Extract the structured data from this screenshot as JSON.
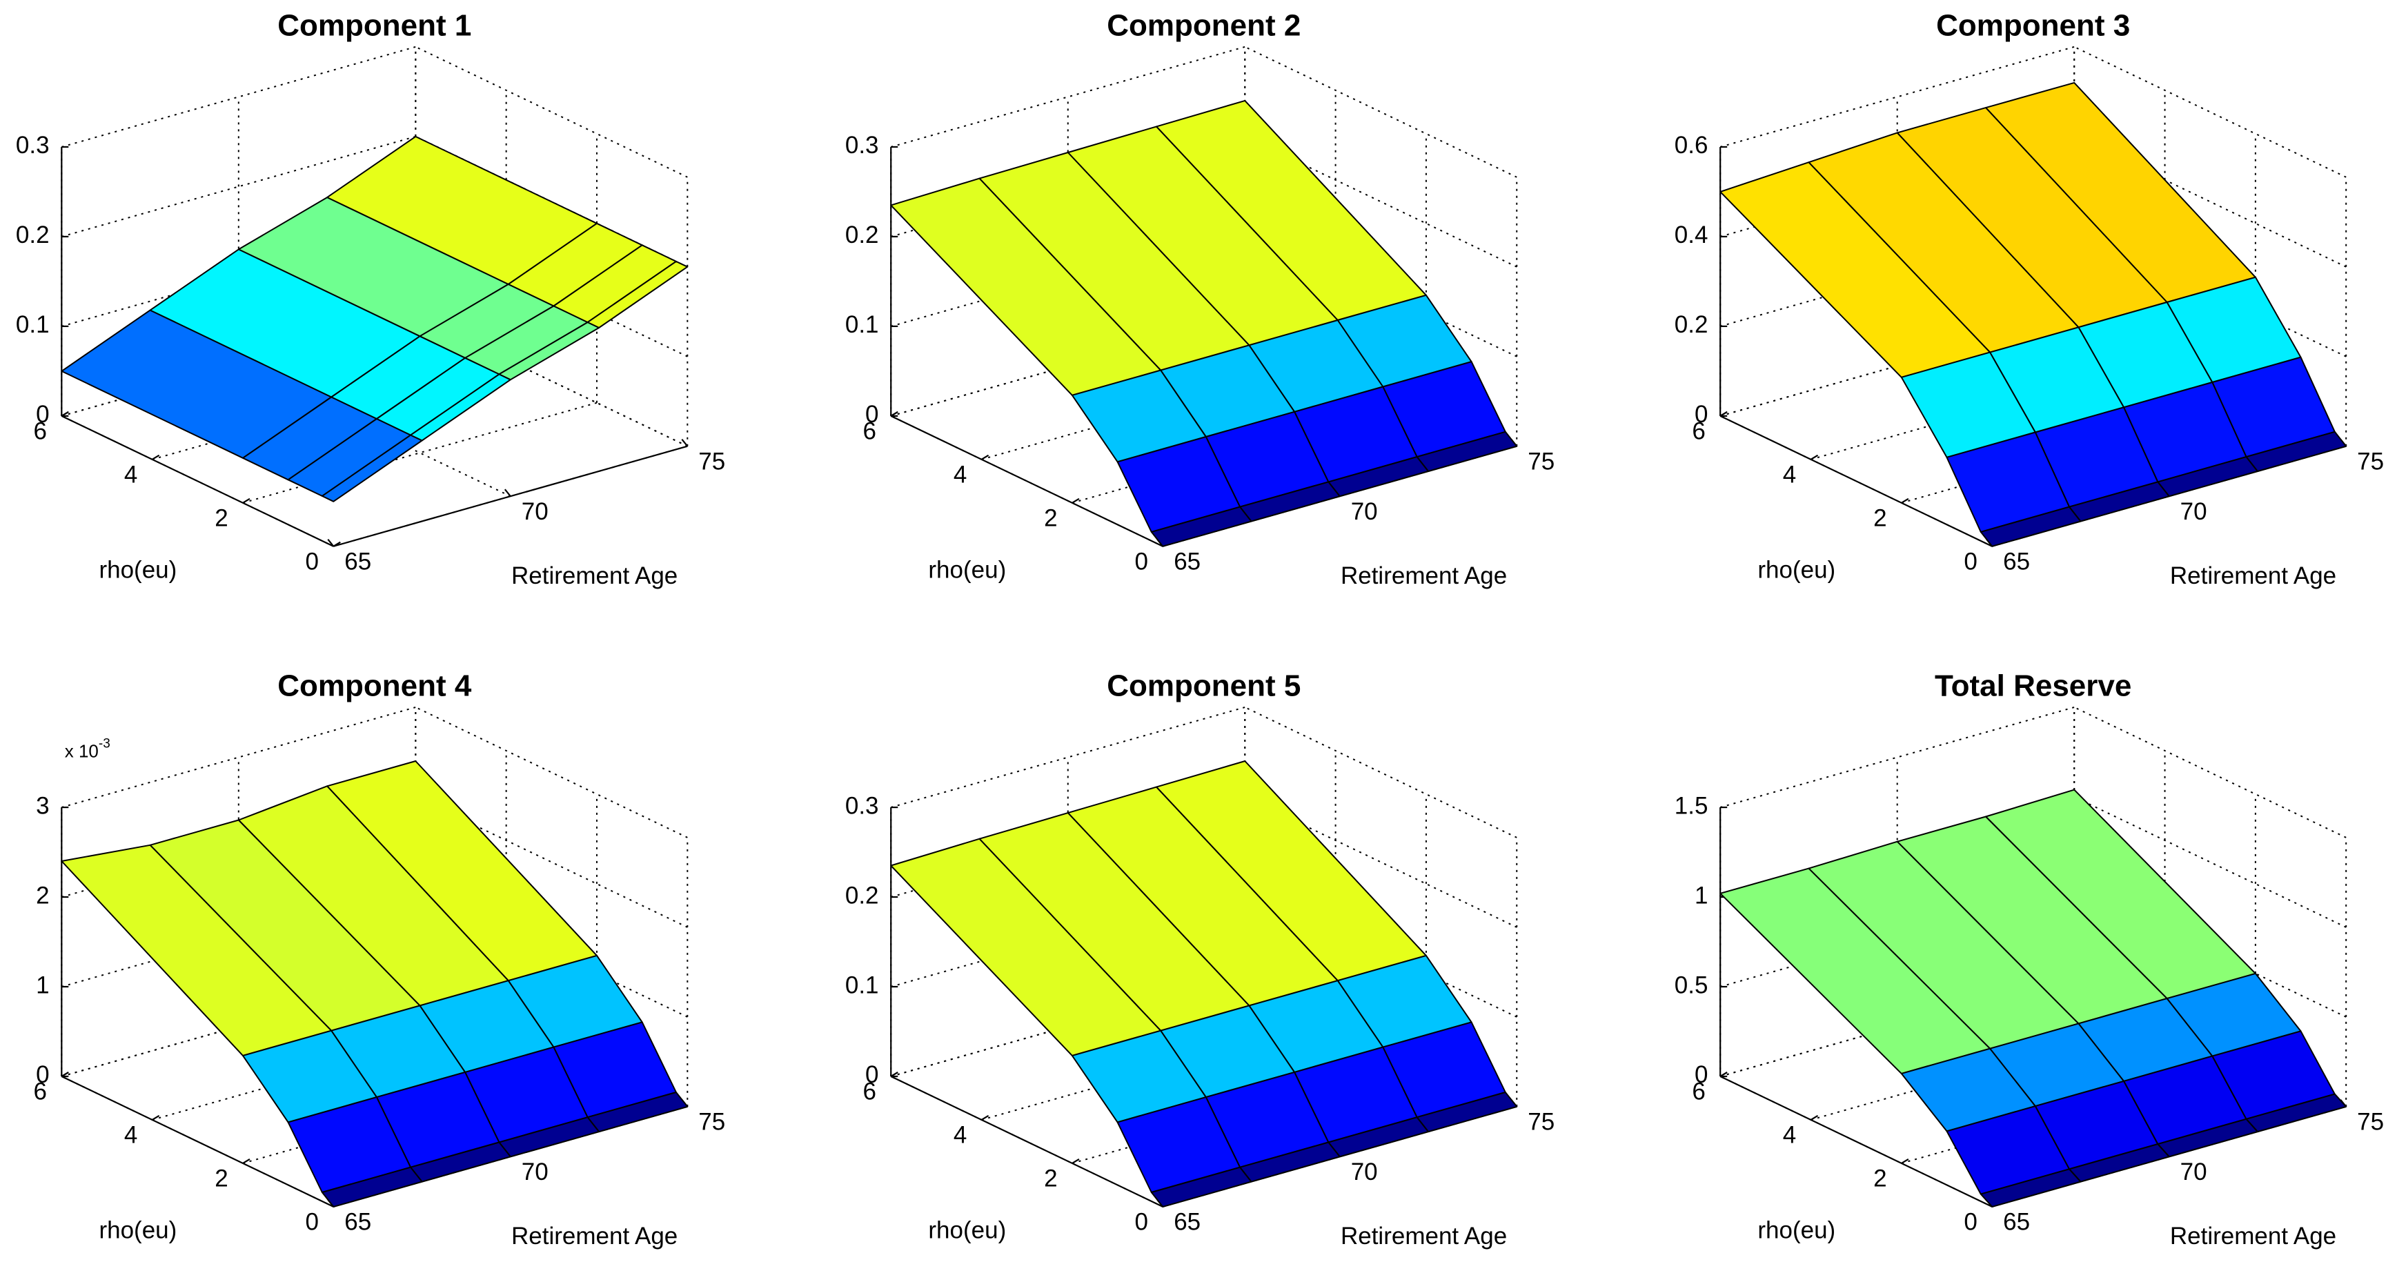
{
  "chart_data": [
    {
      "type": "surface",
      "title": "Component 1",
      "xlabel": "Retirement Age",
      "ylabel": "rho(eu)",
      "x": [
        65,
        67.5,
        70,
        72.5,
        75
      ],
      "y": [
        0,
        0.25,
        1,
        2,
        6
      ],
      "z": [
        [
          0.05,
          0.09,
          0.13,
          0.16,
          0.2
        ],
        [
          0.05,
          0.09,
          0.13,
          0.16,
          0.2
        ],
        [
          0.05,
          0.09,
          0.13,
          0.16,
          0.2
        ],
        [
          0.05,
          0.09,
          0.13,
          0.16,
          0.2
        ],
        [
          0.05,
          0.09,
          0.13,
          0.16,
          0.2
        ]
      ],
      "xlim": [
        65,
        75
      ],
      "ylim": [
        0,
        6
      ],
      "zlim": [
        0,
        0.3
      ],
      "xticks": [
        65,
        70,
        75
      ],
      "yticks": [
        0,
        2,
        4,
        6
      ],
      "zticks": [
        0,
        0.1,
        0.2,
        0.3
      ],
      "grid": true
    },
    {
      "type": "surface",
      "title": "Component 2",
      "xlabel": "Retirement Age",
      "ylabel": "rho(eu)",
      "x": [
        65,
        67.5,
        70,
        72.5,
        75
      ],
      "y": [
        0,
        0.25,
        1,
        2,
        6
      ],
      "z": [
        [
          0,
          0,
          0,
          0,
          0
        ],
        [
          0.01,
          0.01,
          0.01,
          0.01,
          0.01
        ],
        [
          0.07,
          0.07,
          0.07,
          0.07,
          0.07
        ],
        [
          0.12,
          0.12,
          0.12,
          0.12,
          0.12
        ],
        [
          0.235,
          0.237,
          0.238,
          0.239,
          0.24
        ]
      ],
      "xlim": [
        65,
        75
      ],
      "ylim": [
        0,
        6
      ],
      "zlim": [
        0,
        0.3
      ],
      "xticks": [
        65,
        70,
        75
      ],
      "yticks": [
        0,
        2,
        4,
        6
      ],
      "zticks": [
        0,
        0.1,
        0.2,
        0.3
      ],
      "grid": true
    },
    {
      "type": "surface",
      "title": "Component 3",
      "xlabel": "Retirement Age",
      "ylabel": "rho(eu)",
      "x": [
        65,
        67.5,
        70,
        72.5,
        75
      ],
      "y": [
        0,
        0.25,
        1,
        2,
        6
      ],
      "z": [
        [
          0,
          0,
          0,
          0,
          0
        ],
        [
          0.02,
          0.02,
          0.02,
          0.02,
          0.02
        ],
        [
          0.15,
          0.15,
          0.15,
          0.15,
          0.15
        ],
        [
          0.28,
          0.28,
          0.28,
          0.28,
          0.28
        ],
        [
          0.5,
          0.51,
          0.52,
          0.52,
          0.52
        ]
      ],
      "xlim": [
        65,
        75
      ],
      "ylim": [
        0,
        6
      ],
      "zlim": [
        0,
        0.6
      ],
      "xticks": [
        65,
        70,
        75
      ],
      "yticks": [
        0,
        2,
        4,
        6
      ],
      "zticks": [
        0,
        0.2,
        0.4,
        0.6
      ],
      "grid": true
    },
    {
      "type": "surface",
      "title": "Component 4",
      "xlabel": "Retirement Age",
      "ylabel": "rho(eu)",
      "x": [
        65,
        67.5,
        70,
        72.5,
        75
      ],
      "y": [
        0,
        0.25,
        1,
        2,
        6
      ],
      "z": [
        [
          0,
          0,
          0,
          0,
          0
        ],
        [
          0.0001,
          0.0001,
          0.0001,
          0.0001,
          0.0001
        ],
        [
          0.0007,
          0.0007,
          0.0007,
          0.0007,
          0.0007
        ],
        [
          0.0012,
          0.0012,
          0.0012,
          0.0012,
          0.0012
        ],
        [
          0.0024,
          0.0023,
          0.0023,
          0.0024,
          0.0024
        ]
      ],
      "xlim": [
        65,
        75
      ],
      "ylim": [
        0,
        6
      ],
      "zlim": [
        0,
        0.003
      ],
      "xticks": [
        65,
        70,
        75
      ],
      "yticks": [
        0,
        2,
        4,
        6
      ],
      "zticks": [
        0,
        {
          "value": 0.001,
          "label": "1"
        },
        {
          "value": 0.002,
          "label": "2"
        },
        {
          "value": 0.003,
          "label": "3"
        }
      ],
      "zmultiplier": "x 10",
      "zexponent": "-3",
      "grid": true
    },
    {
      "type": "surface",
      "title": "Component 5",
      "xlabel": "Retirement Age",
      "ylabel": "rho(eu)",
      "x": [
        65,
        67.5,
        70,
        72.5,
        75
      ],
      "y": [
        0,
        0.25,
        1,
        2,
        6
      ],
      "z": [
        [
          0,
          0,
          0,
          0,
          0
        ],
        [
          0.01,
          0.01,
          0.01,
          0.01,
          0.01
        ],
        [
          0.07,
          0.07,
          0.07,
          0.07,
          0.07
        ],
        [
          0.12,
          0.12,
          0.12,
          0.12,
          0.12
        ],
        [
          0.235,
          0.237,
          0.238,
          0.239,
          0.24
        ]
      ],
      "xlim": [
        65,
        75
      ],
      "ylim": [
        0,
        6
      ],
      "zlim": [
        0,
        0.3
      ],
      "xticks": [
        65,
        70,
        75
      ],
      "yticks": [
        0,
        2,
        4,
        6
      ],
      "zticks": [
        0,
        0.1,
        0.2,
        0.3
      ],
      "grid": true
    },
    {
      "type": "surface",
      "title": "Total Reserve",
      "xlabel": "Retirement Age",
      "ylabel": "rho(eu)",
      "x": [
        65,
        67.5,
        70,
        72.5,
        75
      ],
      "y": [
        0,
        0.25,
        1,
        2,
        6
      ],
      "z": [
        [
          0,
          0,
          0,
          0,
          0
        ],
        [
          0.04,
          0.04,
          0.04,
          0.04,
          0.04
        ],
        [
          0.3,
          0.3,
          0.3,
          0.3,
          0.3
        ],
        [
          0.5,
          0.5,
          0.5,
          0.5,
          0.5
        ],
        [
          1.02,
          1.02,
          1.03,
          1.03,
          1.04
        ]
      ],
      "xlim": [
        65,
        75
      ],
      "ylim": [
        0,
        6
      ],
      "zlim": [
        0,
        1.5
      ],
      "xticks": [
        65,
        70,
        75
      ],
      "yticks": [
        0,
        2,
        4,
        6
      ],
      "zticks": [
        0,
        0.5,
        1,
        1.5
      ],
      "grid": true
    }
  ]
}
